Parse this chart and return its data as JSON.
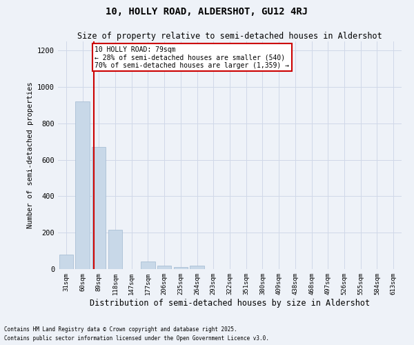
{
  "title": "10, HOLLY ROAD, ALDERSHOT, GU12 4RJ",
  "subtitle": "Size of property relative to semi-detached houses in Aldershot",
  "xlabel": "Distribution of semi-detached houses by size in Aldershot",
  "ylabel": "Number of semi-detached properties",
  "categories": [
    "31sqm",
    "60sqm",
    "89sqm",
    "118sqm",
    "147sqm",
    "177sqm",
    "206sqm",
    "235sqm",
    "264sqm",
    "293sqm",
    "322sqm",
    "351sqm",
    "380sqm",
    "409sqm",
    "438sqm",
    "468sqm",
    "497sqm",
    "526sqm",
    "555sqm",
    "584sqm",
    "613sqm"
  ],
  "values": [
    80,
    920,
    670,
    215,
    0,
    40,
    20,
    10,
    20,
    0,
    0,
    0,
    0,
    0,
    0,
    0,
    0,
    0,
    0,
    0,
    0
  ],
  "bar_color": "#c8d8e8",
  "bar_edge_color": "#a0b8d0",
  "grid_color": "#d0d8e8",
  "background_color": "#eef2f8",
  "annotation_title": "10 HOLLY ROAD: 79sqm",
  "annotation_line1": "← 28% of semi-detached houses are smaller (540)",
  "annotation_line2": "70% of semi-detached houses are larger (1,359) →",
  "annotation_box_color": "#ffffff",
  "annotation_box_edge": "#cc0000",
  "vline_color": "#cc0000",
  "vline_pos": 1.68,
  "ylim": [
    0,
    1250
  ],
  "yticks": [
    0,
    200,
    400,
    600,
    800,
    1000,
    1200
  ],
  "footer1": "Contains HM Land Registry data © Crown copyright and database right 2025.",
  "footer2": "Contains public sector information licensed under the Open Government Licence v3.0."
}
